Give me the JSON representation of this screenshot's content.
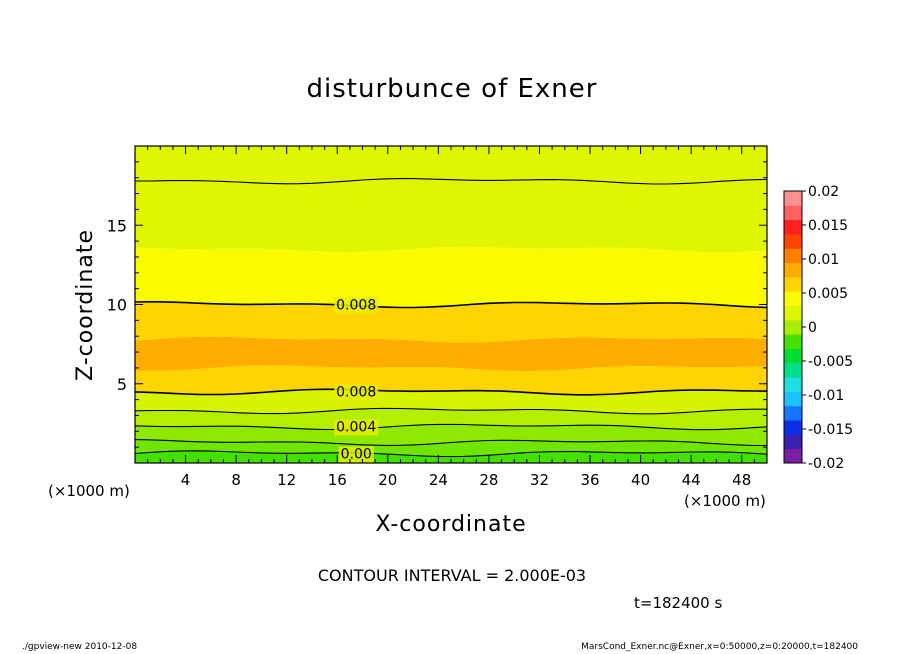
{
  "chart_data": {
    "type": "heatmap",
    "title": "disturbunce of Exner",
    "xlabel": "X-coordinate",
    "ylabel": "Z-coordinate",
    "x_unit_label": "(×1000 m)",
    "xlim": [
      0,
      50
    ],
    "ylim": [
      0,
      20
    ],
    "x_ticks": [
      4,
      8,
      12,
      16,
      20,
      24,
      28,
      32,
      36,
      40,
      44,
      48
    ],
    "y_ticks": [
      5,
      10,
      15
    ],
    "contour_interval_label": "CONTOUR INTERVAL = 2.000E-03",
    "time_label": "t=182400 s",
    "colorbar": {
      "ticks": [
        "0.02",
        "0.015",
        "0.01",
        "0.005",
        "0",
        "-0.005",
        "-0.01",
        "-0.015",
        "-0.02"
      ],
      "range": [
        -0.02,
        0.02
      ],
      "colors": [
        "#7a1fa2",
        "#3b1fb0",
        "#0a2ee6",
        "#1576ff",
        "#1fc0ff",
        "#1fe0e0",
        "#00e08a",
        "#00dd33",
        "#44e000",
        "#a8ee00",
        "#e0f500",
        "#fbfb00",
        "#ffd400",
        "#ffae00",
        "#ff7f00",
        "#ff4500",
        "#ff2020",
        "#ff6060",
        "#ff9090"
      ]
    },
    "contour_labels": [
      {
        "text": "0.008",
        "x": 17.5,
        "z": 10.0
      },
      {
        "text": "0.008",
        "x": 17.5,
        "z": 4.5
      },
      {
        "text": "0.004",
        "x": 17.5,
        "z": 2.3
      },
      {
        "text": "0.00",
        "x": 17.5,
        "z": 0.6
      }
    ],
    "bands": [
      {
        "z_range": [
          0.0,
          0.6
        ],
        "color": "#44e000"
      },
      {
        "z_range": [
          0.6,
          1.3
        ],
        "color": "#6ee600"
      },
      {
        "z_range": [
          1.3,
          2.3
        ],
        "color": "#8ee800"
      },
      {
        "z_range": [
          2.3,
          3.3
        ],
        "color": "#b4ee00"
      },
      {
        "z_range": [
          3.3,
          4.5
        ],
        "color": "#d8f300"
      },
      {
        "z_range": [
          4.5,
          6.0
        ],
        "color": "#ffd400"
      },
      {
        "z_range": [
          6.0,
          7.8
        ],
        "color": "#ffad00"
      },
      {
        "z_range": [
          7.8,
          10.0
        ],
        "color": "#ffd400"
      },
      {
        "z_range": [
          10.0,
          13.5
        ],
        "color": "#fbfb00"
      },
      {
        "z_range": [
          13.5,
          20.0
        ],
        "color": "#e0f500"
      }
    ]
  },
  "footer": {
    "left": "./gpview-new   2010-12-08",
    "right": "MarsCond_Exner.nc@Exner,x=0:50000,z=0:20000,t=182400"
  }
}
